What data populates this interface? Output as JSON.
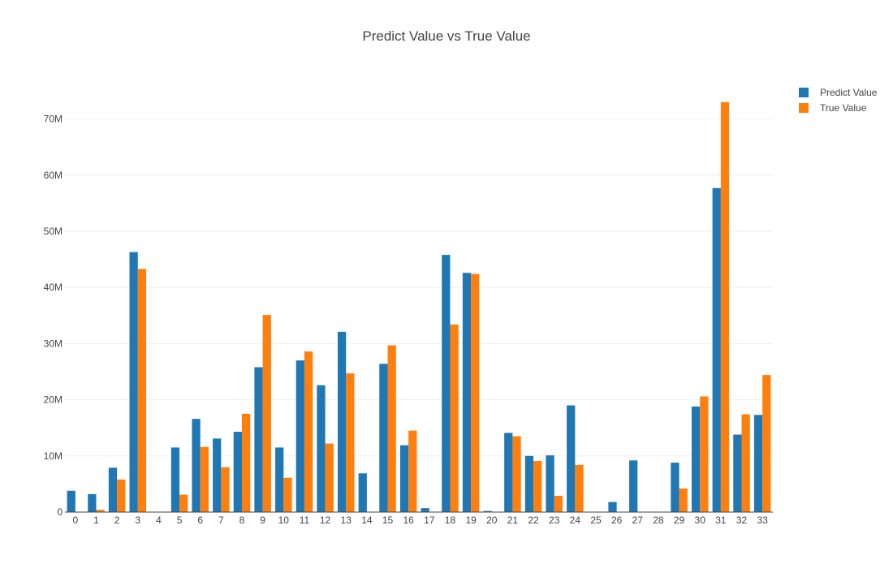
{
  "chart_data": {
    "type": "bar",
    "title": "Predict Value vs True Value",
    "xlabel": "",
    "ylabel": "",
    "categories": [
      "0",
      "1",
      "2",
      "3",
      "4",
      "5",
      "6",
      "7",
      "8",
      "9",
      "10",
      "11",
      "12",
      "13",
      "14",
      "15",
      "16",
      "17",
      "18",
      "19",
      "20",
      "21",
      "22",
      "23",
      "24",
      "25",
      "26",
      "27",
      "28",
      "29",
      "30",
      "31",
      "32",
      "33"
    ],
    "series": [
      {
        "name": "Predict Value",
        "color": "#1f77b4",
        "values": [
          3800000,
          3200000,
          7900000,
          46300000,
          0,
          11500000,
          16600000,
          13100000,
          14300000,
          25800000,
          11500000,
          27000000,
          22600000,
          32100000,
          6900000,
          26400000,
          11900000,
          700000,
          45800000,
          42600000,
          200000,
          14100000,
          10000000,
          10100000,
          19000000,
          0,
          1800000,
          9200000,
          0,
          8800000,
          18800000,
          57700000,
          13800000,
          17300000
        ]
      },
      {
        "name": "True Value",
        "color": "#ff7f0e",
        "values": [
          0,
          400000,
          5800000,
          43300000,
          0,
          3100000,
          11600000,
          8000000,
          17500000,
          35100000,
          6100000,
          28600000,
          12200000,
          24700000,
          0,
          29700000,
          14500000,
          0,
          33400000,
          42400000,
          0,
          13500000,
          9100000,
          2900000,
          8400000,
          0,
          0,
          0,
          0,
          4200000,
          20600000,
          73000000,
          17400000,
          24400000
        ]
      }
    ],
    "ylim": [
      0,
      73000000
    ],
    "yticks": [
      0,
      10000000,
      20000000,
      30000000,
      40000000,
      50000000,
      60000000,
      70000000
    ],
    "yticklabels": [
      "0",
      "10M",
      "20M",
      "30M",
      "40M",
      "50M",
      "60M",
      "70M"
    ],
    "grid": true,
    "legend": "top-right"
  }
}
